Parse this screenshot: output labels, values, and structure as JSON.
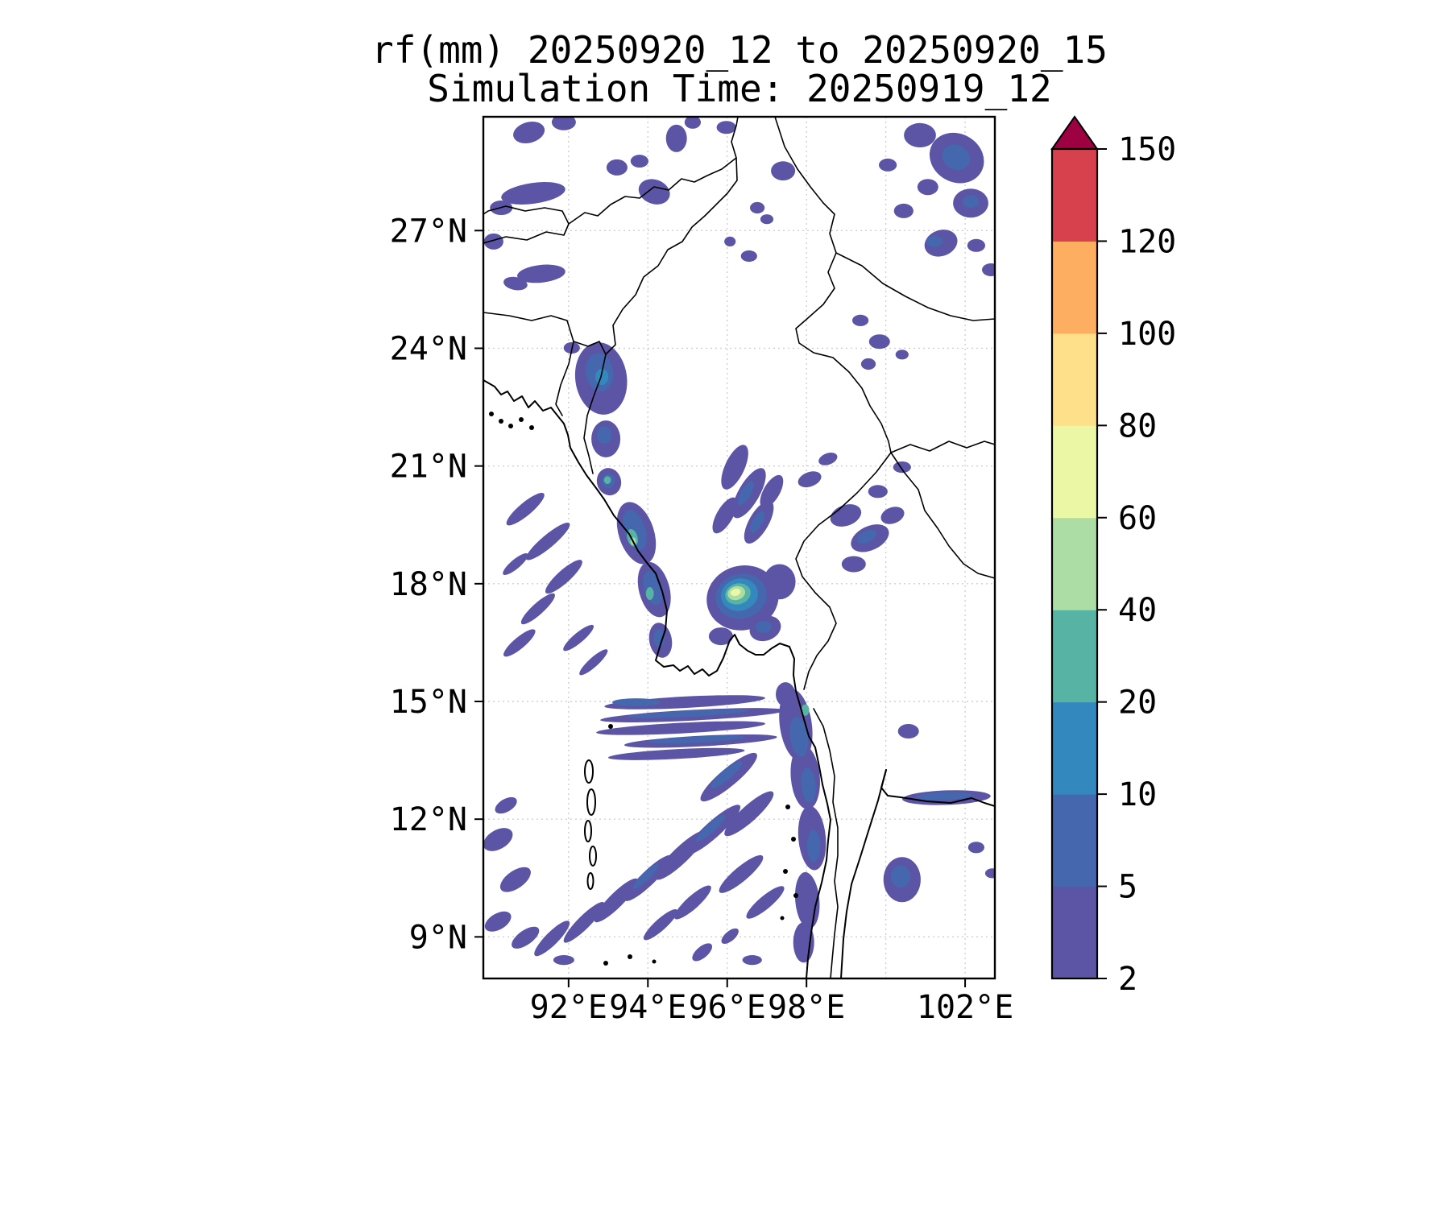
{
  "title": {
    "line1": "rf(mm) 20250920_12 to 20250920_15",
    "line2": "Simulation Time: 20250919_12"
  },
  "axes": {
    "lon_min": 89.85,
    "lon_max": 102.75,
    "lat_min": 7.94,
    "lat_max": 29.9,
    "x_ticks": [
      {
        "value": 92,
        "label": "92°E"
      },
      {
        "value": 94,
        "label": "94°E"
      },
      {
        "value": 96,
        "label": "96°E"
      },
      {
        "value": 98,
        "label": "98°E"
      },
      {
        "value": 102,
        "label": "102°E"
      }
    ],
    "y_ticks": [
      {
        "value": 9,
        "label": "9°N"
      },
      {
        "value": 12,
        "label": "12°N"
      },
      {
        "value": 15,
        "label": "15°N"
      },
      {
        "value": 18,
        "label": "18°N"
      },
      {
        "value": 21,
        "label": "21°N"
      },
      {
        "value": 24,
        "label": "24°N"
      },
      {
        "value": 27,
        "label": "27°N"
      }
    ],
    "grid_lons": [
      92,
      94,
      96,
      98,
      100,
      102
    ],
    "grid_lats": [
      9,
      12,
      15,
      18,
      21,
      24,
      27
    ]
  },
  "colorbar": {
    "levels": [
      2,
      5,
      10,
      20,
      40,
      60,
      80,
      100,
      120,
      150
    ],
    "labels": [
      "2",
      "5",
      "10",
      "20",
      "40",
      "60",
      "80",
      "100",
      "120",
      "150"
    ],
    "colors": [
      "#5c54a5",
      "#4467ae",
      "#3389bd",
      "#57b3a4",
      "#abdda4",
      "#ecf7a6",
      "#fee08b",
      "#fdae61",
      "#d7414e"
    ],
    "extend_color": "#9e0142"
  },
  "chart_data": {
    "type": "heatmap",
    "variable": "rf",
    "units": "mm",
    "valid_period": "20250920_12 to 20250920_15",
    "simulation_time": "20250919_12",
    "lon_range": [
      89.85,
      102.75
    ],
    "lat_range": [
      7.94,
      29.9
    ],
    "levels": [
      2,
      5,
      10,
      20,
      40,
      60,
      80,
      100,
      120,
      150
    ],
    "cells_format": [
      "lon_deg",
      "lat_deg",
      "width_deg",
      "height_deg",
      "rotation_deg",
      "rf_mm"
    ],
    "cells": [
      [
        91.0,
        29.5,
        0.81,
        0.53,
        -15,
        3
      ],
      [
        91.88,
        29.76,
        0.61,
        0.41,
        0,
        3
      ],
      [
        91.11,
        27.95,
        1.63,
        0.53,
        -8,
        3
      ],
      [
        90.3,
        27.58,
        0.57,
        0.37,
        0,
        3
      ],
      [
        90.11,
        26.72,
        0.49,
        0.41,
        0,
        3
      ],
      [
        91.31,
        25.9,
        1.22,
        0.45,
        -6,
        3
      ],
      [
        90.66,
        25.65,
        0.61,
        0.33,
        10,
        3
      ],
      [
        93.22,
        28.61,
        0.53,
        0.41,
        0,
        3
      ],
      [
        93.79,
        28.77,
        0.45,
        0.33,
        0,
        3
      ],
      [
        94.16,
        27.99,
        0.81,
        0.62,
        20,
        3
      ],
      [
        94.72,
        29.35,
        0.53,
        0.7,
        0,
        3
      ],
      [
        95.13,
        29.76,
        0.41,
        0.33,
        0,
        3
      ],
      [
        95.98,
        29.63,
        0.49,
        0.33,
        0,
        3
      ],
      [
        97.41,
        28.52,
        0.61,
        0.49,
        0,
        3
      ],
      [
        96.76,
        27.58,
        0.37,
        0.29,
        0,
        3
      ],
      [
        97.0,
        27.29,
        0.33,
        0.25,
        0,
        3
      ],
      [
        96.55,
        26.35,
        0.41,
        0.29,
        0,
        3
      ],
      [
        96.07,
        26.72,
        0.29,
        0.25,
        0,
        3
      ],
      [
        100.86,
        29.43,
        0.81,
        0.62,
        0,
        3
      ],
      [
        101.79,
        28.85,
        1.42,
        1.23,
        30,
        3
      ],
      [
        101.77,
        28.87,
        0.73,
        0.62,
        30,
        7
      ],
      [
        102.14,
        27.7,
        0.89,
        0.74,
        0,
        3
      ],
      [
        102.14,
        27.74,
        0.41,
        0.33,
        0,
        7
      ],
      [
        101.06,
        28.11,
        0.53,
        0.41,
        0,
        3
      ],
      [
        100.45,
        27.5,
        0.49,
        0.37,
        0,
        3
      ],
      [
        101.39,
        26.68,
        0.85,
        0.66,
        -20,
        3
      ],
      [
        101.23,
        26.72,
        0.41,
        0.29,
        0,
        7
      ],
      [
        102.28,
        26.62,
        0.45,
        0.33,
        0,
        3
      ],
      [
        102.65,
        26.0,
        0.45,
        0.33,
        0,
        3
      ],
      [
        100.05,
        28.67,
        0.45,
        0.33,
        0,
        3
      ],
      [
        99.36,
        24.71,
        0.41,
        0.29,
        0,
        3
      ],
      [
        99.84,
        24.17,
        0.53,
        0.37,
        0,
        3
      ],
      [
        99.56,
        23.6,
        0.37,
        0.29,
        0,
        3
      ],
      [
        100.41,
        23.84,
        0.33,
        0.25,
        0,
        3
      ],
      [
        92.82,
        23.23,
        1.3,
        1.85,
        -8,
        3
      ],
      [
        92.78,
        23.39,
        0.69,
        0.99,
        -8,
        7
      ],
      [
        92.84,
        23.27,
        0.33,
        0.41,
        0,
        15
      ],
      [
        92.94,
        21.69,
        0.73,
        0.94,
        0,
        3
      ],
      [
        92.9,
        21.79,
        0.37,
        0.45,
        0,
        7
      ],
      [
        92.08,
        24.01,
        0.41,
        0.29,
        0,
        3
      ],
      [
        93.02,
        20.6,
        0.61,
        0.7,
        -15,
        3
      ],
      [
        93.0,
        20.62,
        0.33,
        0.37,
        0,
        7
      ],
      [
        92.98,
        20.64,
        0.18,
        0.2,
        0,
        30
      ],
      [
        93.71,
        19.29,
        0.89,
        1.64,
        -18,
        3
      ],
      [
        93.67,
        19.37,
        0.53,
        1.07,
        -18,
        7
      ],
      [
        93.61,
        19.17,
        0.26,
        0.45,
        -15,
        30
      ],
      [
        93.63,
        19.08,
        0.14,
        0.2,
        0,
        50
      ],
      [
        94.16,
        17.85,
        0.77,
        1.44,
        -15,
        3
      ],
      [
        94.12,
        17.89,
        0.45,
        0.9,
        -15,
        7
      ],
      [
        94.05,
        17.75,
        0.2,
        0.33,
        0,
        30
      ],
      [
        94.32,
        16.56,
        0.57,
        0.9,
        -10,
        3
      ],
      [
        94.28,
        16.62,
        0.29,
        0.45,
        0,
        7
      ],
      [
        96.19,
        20.97,
        0.49,
        1.23,
        25,
        3
      ],
      [
        96.55,
        20.31,
        0.53,
        1.44,
        30,
        3
      ],
      [
        96.8,
        19.57,
        0.49,
        1.23,
        30,
        3
      ],
      [
        97.12,
        20.35,
        0.41,
        0.94,
        30,
        3
      ],
      [
        95.94,
        19.74,
        0.41,
        1.03,
        30,
        3
      ],
      [
        96.47,
        20.31,
        0.25,
        0.7,
        30,
        7
      ],
      [
        96.76,
        19.57,
        0.25,
        0.62,
        30,
        7
      ],
      [
        96.39,
        17.64,
        1.83,
        1.64,
        -15,
        3
      ],
      [
        96.35,
        17.68,
        1.3,
        1.15,
        -15,
        7
      ],
      [
        96.31,
        17.72,
        0.94,
        0.82,
        -15,
        15
      ],
      [
        96.27,
        17.74,
        0.65,
        0.53,
        -15,
        30
      ],
      [
        96.23,
        17.76,
        0.45,
        0.35,
        -15,
        50
      ],
      [
        96.21,
        17.78,
        0.26,
        0.18,
        -15,
        70
      ],
      [
        96.96,
        16.86,
        0.81,
        0.62,
        -20,
        3
      ],
      [
        96.92,
        16.9,
        0.41,
        0.31,
        0,
        7
      ],
      [
        97.32,
        18.05,
        0.81,
        0.9,
        0,
        3
      ],
      [
        95.84,
        16.66,
        0.61,
        0.45,
        0,
        3
      ],
      [
        94.93,
        14.98,
        4.06,
        0.29,
        -3,
        3
      ],
      [
        95.13,
        14.65,
        4.67,
        0.27,
        -3,
        3
      ],
      [
        95.03,
        14.69,
        3.05,
        0.16,
        -3,
        7
      ],
      [
        94.83,
        14.32,
        4.27,
        0.27,
        -3,
        3
      ],
      [
        95.33,
        13.99,
        3.86,
        0.27,
        -3,
        3
      ],
      [
        95.23,
        14.03,
        2.44,
        0.16,
        -3,
        7
      ],
      [
        94.72,
        13.66,
        3.45,
        0.25,
        -3,
        3
      ],
      [
        93.71,
        14.98,
        1.22,
        0.2,
        0,
        7
      ],
      [
        96.04,
        13.07,
        1.83,
        0.45,
        -40,
        3
      ],
      [
        95.98,
        13.13,
        1.02,
        0.25,
        -40,
        7
      ],
      [
        96.55,
        12.14,
        1.63,
        0.41,
        -42,
        3
      ],
      [
        95.64,
        11.73,
        1.83,
        0.41,
        -42,
        3
      ],
      [
        95.58,
        11.77,
        0.98,
        0.22,
        -42,
        7
      ],
      [
        94.83,
        11.08,
        1.73,
        0.41,
        -44,
        3
      ],
      [
        94.01,
        10.5,
        1.63,
        0.37,
        -44,
        3
      ],
      [
        93.95,
        10.54,
        0.89,
        0.2,
        -44,
        7
      ],
      [
        93.2,
        9.93,
        1.52,
        0.37,
        -45,
        3
      ],
      [
        92.39,
        9.37,
        1.42,
        0.33,
        -45,
        3
      ],
      [
        91.58,
        8.96,
        1.22,
        0.33,
        -45,
        3
      ],
      [
        96.35,
        10.6,
        1.42,
        0.37,
        -40,
        3
      ],
      [
        96.96,
        9.88,
        1.22,
        0.33,
        -40,
        3
      ],
      [
        95.13,
        9.88,
        1.22,
        0.33,
        -42,
        3
      ],
      [
        94.32,
        9.31,
        1.12,
        0.29,
        -42,
        3
      ],
      [
        90.91,
        19.9,
        1.22,
        0.33,
        -40,
        3
      ],
      [
        91.48,
        19.08,
        1.42,
        0.33,
        -40,
        3
      ],
      [
        91.88,
        18.18,
        1.22,
        0.33,
        -42,
        3
      ],
      [
        91.23,
        17.36,
        1.12,
        0.29,
        -42,
        3
      ],
      [
        90.76,
        16.49,
        1.02,
        0.29,
        -40,
        3
      ],
      [
        92.25,
        16.62,
        0.98,
        0.26,
        -40,
        3
      ],
      [
        92.63,
        16.0,
        0.94,
        0.24,
        -42,
        3
      ],
      [
        90.66,
        18.5,
        0.81,
        0.24,
        -40,
        3
      ],
      [
        90.22,
        11.48,
        0.81,
        0.49,
        -30,
        3
      ],
      [
        90.66,
        10.46,
        0.89,
        0.45,
        -35,
        3
      ],
      [
        90.22,
        9.39,
        0.73,
        0.41,
        -30,
        3
      ],
      [
        90.91,
        8.98,
        0.81,
        0.37,
        -35,
        3
      ],
      [
        90.42,
        12.35,
        0.61,
        0.33,
        -30,
        3
      ],
      [
        97.73,
        14.4,
        0.81,
        1.85,
        -8,
        3
      ],
      [
        97.81,
        14.1,
        0.45,
        1.03,
        -8,
        7
      ],
      [
        97.97,
        13.07,
        0.73,
        1.64,
        -5,
        3
      ],
      [
        98.05,
        12.87,
        0.37,
        0.9,
        -5,
        7
      ],
      [
        98.14,
        11.52,
        0.69,
        1.64,
        -5,
        3
      ],
      [
        98.18,
        11.32,
        0.33,
        0.82,
        0,
        7
      ],
      [
        98.02,
        9.93,
        0.61,
        1.44,
        -5,
        3
      ],
      [
        97.93,
        8.86,
        0.53,
        1.03,
        0,
        3
      ],
      [
        97.97,
        14.78,
        0.2,
        0.29,
        0,
        30
      ],
      [
        97.47,
        15.18,
        0.49,
        0.62,
        0,
        3
      ],
      [
        100.57,
        14.24,
        0.53,
        0.37,
        0,
        3
      ],
      [
        101.53,
        12.55,
        2.23,
        0.37,
        -2,
        3
      ],
      [
        101.47,
        12.59,
        1.42,
        0.2,
        -2,
        7
      ],
      [
        100.41,
        10.46,
        0.94,
        1.15,
        0,
        3
      ],
      [
        100.37,
        10.54,
        0.49,
        0.57,
        0,
        7
      ],
      [
        102.28,
        11.28,
        0.41,
        0.29,
        0,
        3
      ],
      [
        102.69,
        10.62,
        0.37,
        0.25,
        0,
        3
      ],
      [
        95.37,
        8.61,
        0.61,
        0.29,
        -40,
        3
      ],
      [
        96.07,
        9.02,
        0.53,
        0.25,
        -40,
        3
      ],
      [
        96.63,
        8.41,
        0.49,
        0.25,
        0,
        3
      ],
      [
        91.88,
        8.41,
        0.53,
        0.25,
        0,
        3
      ],
      [
        98.99,
        19.74,
        0.81,
        0.53,
        -20,
        3
      ],
      [
        99.6,
        19.16,
        1.02,
        0.61,
        -25,
        3
      ],
      [
        99.52,
        19.2,
        0.53,
        0.29,
        -25,
        7
      ],
      [
        100.17,
        19.74,
        0.61,
        0.41,
        -20,
        3
      ],
      [
        99.19,
        18.5,
        0.61,
        0.41,
        0,
        3
      ],
      [
        99.8,
        20.35,
        0.49,
        0.33,
        0,
        3
      ],
      [
        100.41,
        20.97,
        0.45,
        0.29,
        0,
        3
      ],
      [
        98.08,
        20.66,
        0.61,
        0.37,
        -20,
        3
      ],
      [
        98.54,
        21.18,
        0.49,
        0.29,
        -20,
        3
      ]
    ]
  }
}
